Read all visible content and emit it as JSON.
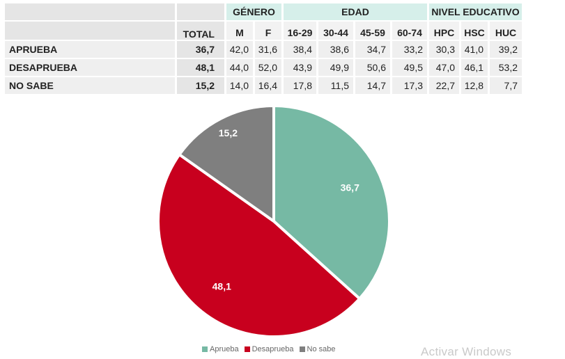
{
  "table": {
    "group_headers": {
      "genero": "GÉNERO",
      "edad": "EDAD",
      "nivel": "NIVEL EDUCATIVO"
    },
    "column_headers": [
      "TOTAL",
      "M",
      "F",
      "16-29",
      "30-44",
      "45-59",
      "60-74",
      "HPC",
      "HSC",
      "HUC"
    ],
    "rows": [
      {
        "label": "APRUEBA",
        "total": "36,7",
        "values": [
          "42,0",
          "31,6",
          "38,4",
          "38,6",
          "34,7",
          "33,2",
          "30,3",
          "41,0",
          "39,2"
        ]
      },
      {
        "label": "DESAPRUEBA",
        "total": "48,1",
        "values": [
          "44,0",
          "52,0",
          "43,9",
          "49,9",
          "50,6",
          "49,5",
          "47,0",
          "46,1",
          "53,2"
        ]
      },
      {
        "label": "NO SABE",
        "total": "15,2",
        "values": [
          "14,0",
          "16,4",
          "17,8",
          "11,5",
          "14,7",
          "17,3",
          "22,7",
          "12,8",
          "7,7"
        ]
      }
    ]
  },
  "chart_data": {
    "type": "pie",
    "categories": [
      "Aprueba",
      "Desaprueba",
      "No sabe"
    ],
    "values": [
      36.7,
      48.1,
      15.2
    ],
    "value_labels": [
      "36,7",
      "48,1",
      "15,2"
    ],
    "colors": [
      "#76b9a4",
      "#c8001e",
      "#7f7f7f"
    ],
    "legend": {
      "placement": "bottom",
      "items": [
        "Aprueba",
        "Desaprueba",
        "No sabe"
      ]
    },
    "start_angle": "12 o'clock, clockwise"
  },
  "watermark": "Activar Windows"
}
